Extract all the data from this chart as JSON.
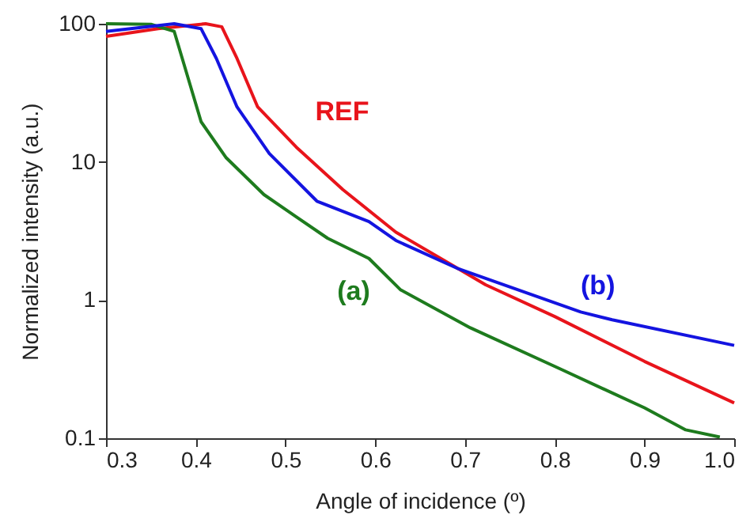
{
  "chart_data": {
    "type": "line",
    "xlabel": "Angle of incidence (º)",
    "ylabel": "Normalized intensity (a.u.)",
    "log": "y",
    "grid": false,
    "line_style": "solid",
    "marker": "none",
    "xlim": [
      0.3,
      1.0
    ],
    "xticks": [
      0.3,
      0.4,
      0.5,
      0.6,
      0.7,
      0.8,
      0.9,
      {
        "value": 1.0,
        "label": "1.0"
      }
    ],
    "ylim": [
      0.1,
      100
    ],
    "yticks": [
      0.1,
      1,
      10,
      100
    ],
    "series": [
      {
        "name": "REF",
        "color": "#e8141b",
        "x": [
          0.3,
          0.358,
          0.411,
          0.429,
          0.446,
          0.469,
          0.512,
          0.564,
          0.623,
          0.693,
          0.723,
          0.8,
          0.9,
          1.0
        ],
        "values": [
          81,
          92,
          100,
          95,
          56,
          25,
          12.8,
          6.3,
          3.1,
          1.68,
          1.29,
          0.76,
          0.36,
          0.18
        ]
      },
      {
        "name": "(a)",
        "color": "#1e7b1e",
        "x": [
          0.3,
          0.35,
          0.376,
          0.406,
          0.434,
          0.476,
          0.512,
          0.547,
          0.593,
          0.628,
          0.706,
          0.805,
          0.9,
          0.946,
          0.984
        ],
        "values": [
          100,
          99,
          88,
          19.5,
          10.7,
          5.8,
          4.0,
          2.8,
          2.0,
          1.19,
          0.63,
          0.32,
          0.166,
          0.115,
          0.102
        ]
      },
      {
        "name": "(b)",
        "color": "#1414e0",
        "x": [
          0.3,
          0.376,
          0.406,
          0.423,
          0.446,
          0.482,
          0.535,
          0.593,
          0.623,
          0.693,
          0.829,
          0.864,
          1.0
        ],
        "values": [
          88,
          100,
          92,
          56,
          25,
          11.5,
          5.2,
          3.7,
          2.7,
          1.68,
          0.82,
          0.72,
          0.47
        ]
      }
    ]
  }
}
